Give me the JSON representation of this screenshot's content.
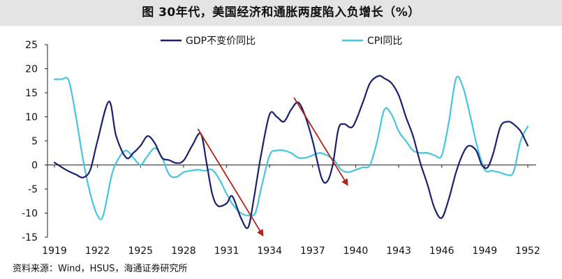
{
  "header": {
    "title": "图 30年代，美国经济和通胀两度陷入负增长（%）"
  },
  "footer": {
    "source": "资料来源：Wind，HSUS，海通证券研究所"
  },
  "colors": {
    "gdp": "#1a1f6e",
    "cpi": "#44c6e0",
    "arrow": "#b0261c",
    "axis": "#222222"
  },
  "chart_data": {
    "type": "line",
    "title": "图 30年代，美国经济和通胀两度陷入负增长（%）",
    "xlabel": "",
    "ylabel": "",
    "xlim": [
      1919,
      1952
    ],
    "ylim": [
      -15,
      25
    ],
    "yticks": [
      "25",
      "20",
      "15",
      "10",
      "5",
      "0",
      "-5",
      "-10",
      "-15"
    ],
    "ytick_values": [
      25,
      20,
      15,
      10,
      5,
      0,
      -5,
      -10,
      -15
    ],
    "xticks": [
      "1919",
      "1922",
      "1925",
      "1928",
      "1931",
      "1934",
      "1937",
      "1940",
      "1943",
      "1946",
      "1949",
      "1952"
    ],
    "xtick_values": [
      1919,
      1922,
      1925,
      1928,
      1931,
      1934,
      1937,
      1940,
      1943,
      1946,
      1949,
      1952
    ],
    "series": [
      {
        "name": "GDP不变价同比",
        "color": "#1a1f6e",
        "x": [
          1919,
          1919.8,
          1920.5,
          1921,
          1921.5,
          1922,
          1922.8,
          1923.3,
          1924,
          1924.5,
          1925,
          1925.5,
          1926,
          1926.5,
          1927,
          1927.5,
          1928,
          1928.6,
          1929.2,
          1929.6,
          1930,
          1930.4,
          1931,
          1931.4,
          1932,
          1932.5,
          1932.9,
          1933.4,
          1934,
          1934.5,
          1935,
          1935.5,
          1936,
          1936.5,
          1937,
          1937.6,
          1938,
          1938.4,
          1938.8,
          1939.2,
          1939.8,
          1940.5,
          1941,
          1941.6,
          1942,
          1942.5,
          1943,
          1943.5,
          1944,
          1944.5,
          1945,
          1945.5,
          1946,
          1946.5,
          1947,
          1947.5,
          1947.9,
          1948.4,
          1948.8,
          1949.2,
          1949.6,
          1950.1,
          1950.6,
          1951,
          1951.5,
          1952
        ],
        "y": [
          0.5,
          -1.0,
          -2.0,
          -2.6,
          -1.0,
          5.0,
          13.2,
          6.0,
          1.5,
          2.5,
          4.0,
          6.0,
          4.5,
          1.5,
          1.0,
          0.4,
          0.9,
          4.0,
          6.5,
          0.5,
          -6.0,
          -8.5,
          -8.0,
          -6.5,
          -11.0,
          -13.0,
          -7.0,
          2.0,
          10.5,
          10.0,
          9.0,
          11.5,
          13.0,
          10.0,
          5.0,
          -2.5,
          -3.5,
          0.0,
          7.5,
          8.5,
          8.0,
          13.0,
          17.0,
          18.5,
          18.0,
          17.0,
          14.5,
          10.0,
          6.0,
          0.5,
          -4.0,
          -9.0,
          -11.0,
          -7.0,
          -1.5,
          2.5,
          4.0,
          3.0,
          0.0,
          -0.5,
          2.5,
          8.0,
          9.0,
          8.5,
          7.0,
          4.0
        ]
      },
      {
        "name": "CPI同比",
        "color": "#44c6e0",
        "x": [
          1919,
          1919.5,
          1920,
          1920.5,
          1921,
          1921.5,
          1922,
          1922.4,
          1923,
          1923.5,
          1924,
          1924.5,
          1925,
          1925.4,
          1926,
          1926.5,
          1927,
          1927.5,
          1928,
          1928.5,
          1929,
          1929.5,
          1930,
          1930.5,
          1931,
          1931.5,
          1932,
          1932.5,
          1933,
          1933.4,
          1934,
          1934.5,
          1935,
          1935.5,
          1936,
          1936.5,
          1937,
          1937.5,
          1938,
          1938.5,
          1939,
          1939.5,
          1940,
          1940.5,
          1941,
          1941.5,
          1942,
          1942.5,
          1943,
          1943.5,
          1944,
          1944.5,
          1945,
          1945.5,
          1946,
          1946.5,
          1947,
          1947.5,
          1948,
          1948.5,
          1949,
          1949.5,
          1950,
          1950.5,
          1951,
          1951.5,
          1952
        ],
        "y": [
          17.8,
          17.8,
          17.5,
          10.0,
          1.0,
          -6.0,
          -10.5,
          -10.5,
          -2.0,
          1.5,
          3.0,
          1.5,
          0.0,
          1.5,
          3.5,
          1.5,
          -2.0,
          -2.5,
          -1.5,
          -1.2,
          -1.0,
          -1.2,
          -1.0,
          -3.0,
          -6.0,
          -8.5,
          -10.0,
          -10.5,
          -10.0,
          -5.0,
          2.0,
          3.0,
          3.0,
          2.5,
          1.5,
          1.5,
          2.0,
          2.5,
          2.0,
          1.0,
          -1.0,
          -1.5,
          -1.0,
          -0.5,
          0.0,
          5.0,
          11.5,
          10.5,
          7.0,
          5.0,
          3.0,
          2.5,
          2.5,
          2.0,
          2.0,
          9.0,
          18.0,
          16.0,
          10.0,
          3.5,
          -1.0,
          -1.2,
          -1.5,
          -2.0,
          -1.5,
          5.0,
          8.0
        ]
      }
    ],
    "annotations": [
      {
        "type": "arrow",
        "from": [
          1929.0,
          7.5
        ],
        "to": [
          1933.5,
          -14.5
        ]
      },
      {
        "type": "arrow",
        "from": [
          1935.7,
          14.0
        ],
        "to": [
          1939.4,
          -4.0
        ]
      }
    ],
    "legend": "top-center"
  }
}
